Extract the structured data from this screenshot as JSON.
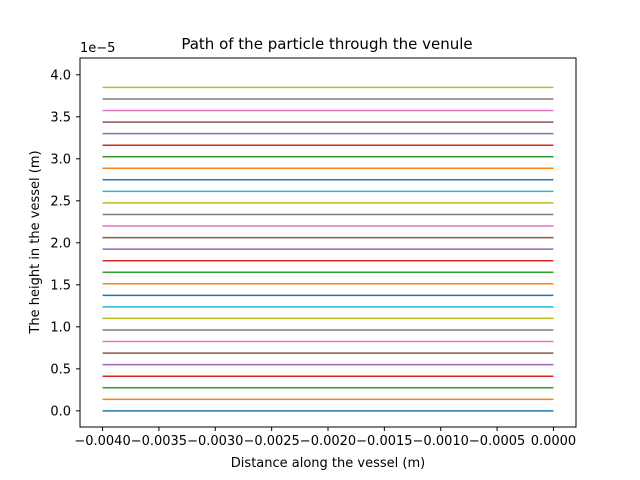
{
  "chart_data": {
    "type": "line",
    "title": "Path of the particle through the venule",
    "xlabel": "Distance along the vessel (m)",
    "ylabel": "The height in the vessel (m)",
    "y_offset_label": "1e−5",
    "xlim": [
      -0.0042,
      0.0002
    ],
    "ylim": [
      -1.925e-06,
      4.2e-05
    ],
    "x_ticks": [
      -0.004,
      -0.0035,
      -0.003,
      -0.0025,
      -0.002,
      -0.0015,
      -0.001,
      -0.0005,
      0.0
    ],
    "x_tick_labels": [
      "−0.0040",
      "−0.0035",
      "−0.0030",
      "−0.0025",
      "−0.0020",
      "−0.0015",
      "−0.0010",
      "−0.0005",
      "0.0000"
    ],
    "y_ticks": [
      0,
      5e-06,
      1e-05,
      1.5e-05,
      2e-05,
      2.5e-05,
      3e-05,
      3.5e-05,
      4e-05
    ],
    "y_tick_labels": [
      "0.0",
      "0.5",
      "1.0",
      "1.5",
      "2.0",
      "2.5",
      "3.0",
      "3.5",
      "4.0"
    ],
    "grid": false,
    "colors": [
      "#1f77b4",
      "#ff7f0e",
      "#2ca02c",
      "#d62728",
      "#9467bd",
      "#8c564b",
      "#e377c2",
      "#7f7f7f",
      "#bcbd22",
      "#17becf"
    ],
    "x_range": [
      -0.004,
      0.0
    ],
    "series_heights": [
      0,
      1.37e-06,
      2.75e-06,
      4.12e-06,
      5.5e-06,
      6.87e-06,
      8.25e-06,
      9.62e-06,
      1.1e-05,
      1.237e-05,
      1.375e-05,
      1.512e-05,
      1.65e-05,
      1.787e-05,
      1.925e-05,
      2.062e-05,
      2.2e-05,
      2.337e-05,
      2.475e-05,
      2.612e-05,
      2.75e-05,
      2.887e-05,
      3.025e-05,
      3.162e-05,
      3.3e-05,
      3.437e-05,
      3.575e-05,
      3.712e-05,
      3.85e-05
    ]
  }
}
